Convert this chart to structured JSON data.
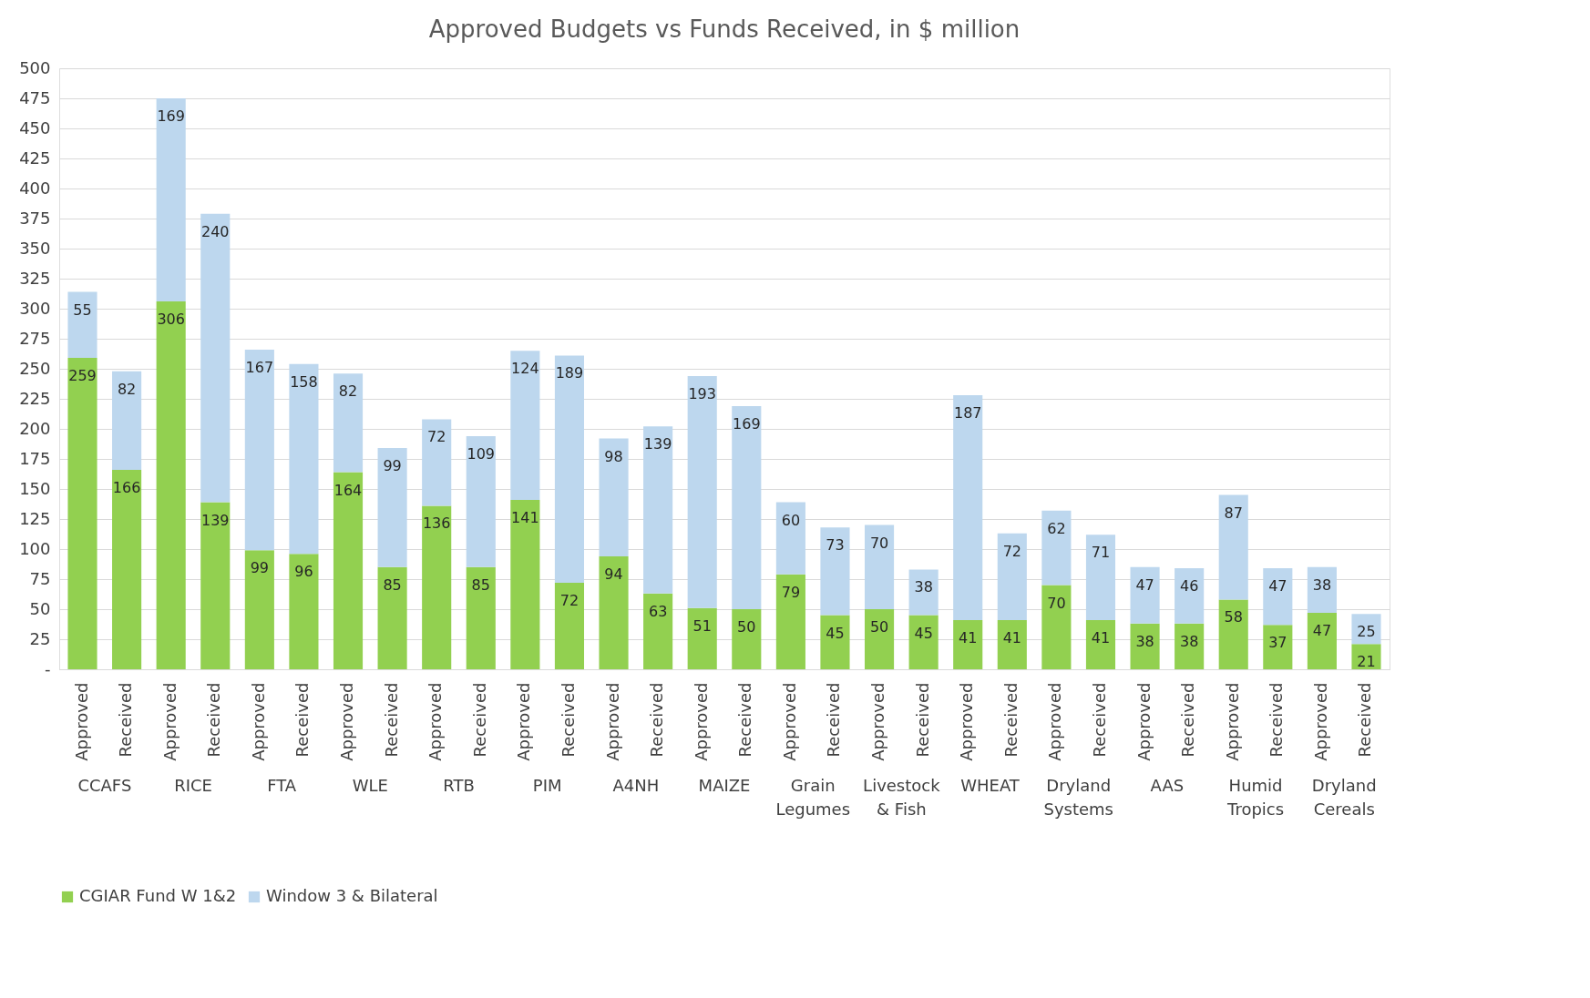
{
  "chart_data": {
    "type": "bar",
    "title": "Approved Budgets vs Funds Received, in $ million",
    "categories": [
      "Approved",
      "Received",
      "Approved",
      "Received",
      "Approved",
      "Received",
      "Approved",
      "Received",
      "Approved",
      "Received",
      "Approved",
      "Received",
      "Approved",
      "Received",
      "Approved",
      "Received",
      "Approved",
      "Received",
      "Approved",
      "Received",
      "Approved",
      "Received",
      "Approved",
      "Received",
      "Approved",
      "Received",
      "Approved",
      "Received",
      "Approved",
      "Received"
    ],
    "annotations": [
      "CCAFS",
      "RICE",
      "FTA",
      "WLE",
      "RTB",
      "PIM",
      "A4NH",
      "MAIZE",
      "Grain Legumes",
      "Livestock & Fish",
      "WHEAT",
      "Dryland Systems",
      "AAS",
      "Humid Tropics",
      "Dryland Cereals"
    ],
    "stacked": true,
    "series": [
      {
        "name": "CGIAR Fund W 1&2",
        "color": "#92d050",
        "values": [
          259,
          166,
          306,
          139,
          99,
          96,
          164,
          85,
          136,
          85,
          141,
          72,
          94,
          63,
          51,
          50,
          79,
          45,
          50,
          45,
          41,
          41,
          70,
          41,
          38,
          38,
          58,
          37,
          47,
          21
        ]
      },
      {
        "name": "Window 3 & Bilateral",
        "color": "#bdd7ee",
        "values": [
          55,
          82,
          169,
          240,
          167,
          158,
          82,
          99,
          72,
          109,
          124,
          189,
          98,
          139,
          193,
          169,
          60,
          73,
          70,
          38,
          187,
          72,
          62,
          71,
          47,
          46,
          87,
          47,
          38,
          25
        ]
      }
    ],
    "ylim": [
      0,
      500
    ],
    "yticks": [
      {
        "value": 0,
        "label": "-"
      },
      25,
      50,
      75,
      100,
      125,
      150,
      175,
      200,
      225,
      250,
      275,
      300,
      325,
      350,
      375,
      400,
      425,
      450,
      475,
      500
    ],
    "grid": "y",
    "legend": "bottom",
    "data_labels": true
  }
}
